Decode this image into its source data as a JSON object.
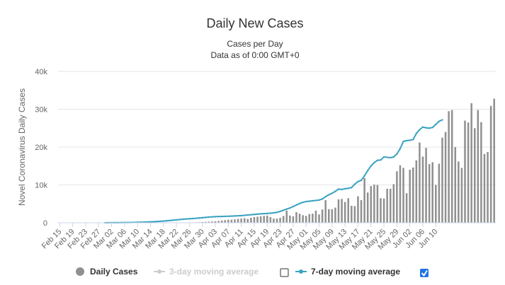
{
  "colors": {
    "bar": "#909090",
    "line": "#3aa3c1",
    "grid": "#e6e6e6",
    "axis": "#ccd6eb",
    "disabled": "#cccccc",
    "checkbox_checked": "#1f74e6"
  },
  "chart_data": {
    "type": "bar",
    "title": "Daily New Cases",
    "subtitle_line1": "Cases per Day",
    "subtitle_line2": "Data as of 0:00 GMT+0",
    "ylabel": "Novel Coronavirus Daily Cases",
    "xlabel": "",
    "ylim": [
      0,
      40000
    ],
    "y_ticks": [
      "0",
      "10k",
      "20k",
      "30k",
      "40k"
    ],
    "y_tick_values": [
      0,
      10000,
      20000,
      30000,
      40000
    ],
    "grid": true,
    "legend_position": "bottom-center",
    "x_tick_labels": [
      "Feb 15",
      "Feb 19",
      "Feb 23",
      "Feb 27",
      "Mar 02",
      "Mar 06",
      "Mar 10",
      "Mar 14",
      "Mar 18",
      "Mar 22",
      "Mar 26",
      "Mar 30",
      "Apr 03",
      "Apr 07",
      "Apr 11",
      "Apr 15",
      "Apr 19",
      "Apr 23",
      "Apr 27",
      "May 01",
      "May 05",
      "May 09",
      "May 13",
      "May 17",
      "May 21",
      "May 25",
      "May 29",
      "Jun 02",
      "Jun 06",
      "Jun 10"
    ],
    "start_label": "Feb 15",
    "bars": [
      0,
      0,
      0,
      0,
      0,
      0,
      0,
      0,
      0,
      0,
      0,
      0,
      0,
      0,
      0,
      0,
      0,
      0,
      0,
      0,
      0,
      0,
      0,
      0,
      0,
      0,
      0,
      0,
      0,
      0,
      0,
      0,
      0,
      0,
      0,
      10,
      20,
      30,
      40,
      60,
      80,
      100,
      120,
      150,
      200,
      250,
      300,
      350,
      400,
      500,
      600,
      700,
      800,
      800,
      900,
      1000,
      1100,
      1200,
      1000,
      1300,
      1500,
      1600,
      1700,
      1800,
      1900,
      1500,
      1100,
      1100,
      1300,
      1800,
      3200,
      1900,
      1700,
      2800,
      2400,
      2000,
      1800,
      2300,
      2400,
      3200,
      2200,
      3500,
      6000,
      3600,
      3600,
      4000,
      6200,
      6300,
      5500,
      6500,
      4500,
      4400,
      7000,
      6000,
      11800,
      8000,
      9700,
      10100,
      10000,
      6500,
      6400,
      9000,
      9000,
      10200,
      13600,
      15200,
      14500,
      7800,
      14000,
      14600,
      16500,
      21200,
      17500,
      19800,
      15500,
      16000,
      10000,
      15600,
      22500,
      24000,
      29500,
      29800,
      20000,
      16200,
      14500,
      27000,
      26500,
      31600,
      25000,
      29800,
      26600,
      18200,
      18700,
      30900,
      32800
    ],
    "avg7_start": 14,
    "avg7": [
      10,
      15,
      20,
      25,
      30,
      40,
      50,
      60,
      80,
      100,
      120,
      140,
      170,
      200,
      240,
      280,
      330,
      390,
      450,
      520,
      600,
      680,
      760,
      850,
      930,
      1000,
      1060,
      1120,
      1180,
      1260,
      1340,
      1420,
      1500,
      1560,
      1620,
      1650,
      1670,
      1700,
      1720,
      1760,
      1800,
      1840,
      1900,
      1960,
      2060,
      2120,
      2200,
      2290,
      2350,
      2400,
      2460,
      2530,
      2620,
      2750,
      3000,
      3300,
      3600,
      3900,
      4300,
      4700,
      5100,
      5400,
      5600,
      5700,
      5800,
      5900,
      6000,
      6300,
      6900,
      7400,
      7800,
      8300,
      8900,
      8800,
      9000,
      9100,
      9300,
      10200,
      10900,
      11200,
      12400,
      13800,
      15000,
      15900,
      16500,
      16600,
      17400,
      17300,
      17200,
      17400,
      18200,
      19600,
      21500,
      21700,
      21800,
      22000,
      23600,
      24600,
      25300,
      25100,
      25000,
      25200,
      26000,
      26800,
      27200
    ]
  },
  "legend": {
    "daily_cases": "Daily Cases",
    "avg3": "3-day moving average",
    "avg7": "7-day moving average",
    "avg3_checked": false,
    "avg7_checked": true
  }
}
